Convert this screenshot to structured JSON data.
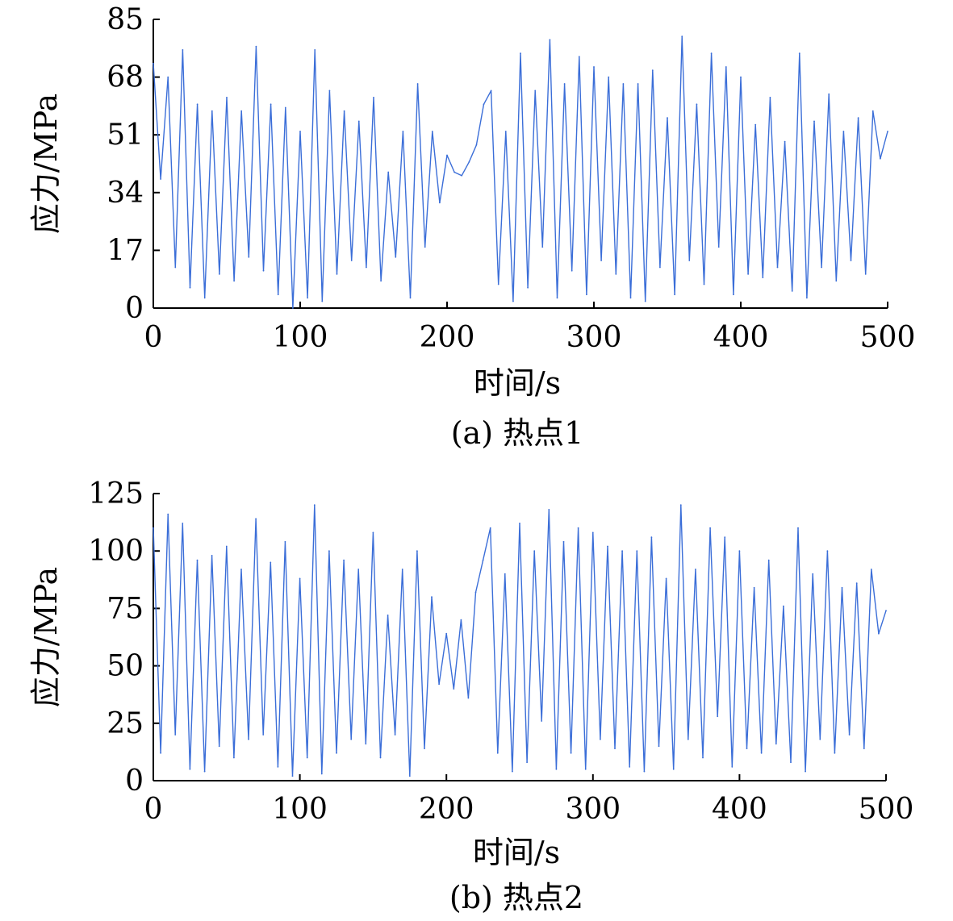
{
  "colors": {
    "line": "#3b6ed8",
    "axis": "#000000",
    "text": "#000000",
    "background": "#ffffff"
  },
  "chart_data": [
    {
      "type": "line",
      "panel_label": "(a) 热点1",
      "xlabel": "时间/s",
      "ylabel": "应力/MPa",
      "xlim": [
        0,
        500
      ],
      "ylim": [
        0,
        85
      ],
      "xticks": [
        "0",
        "100",
        "200",
        "300",
        "400",
        "500"
      ],
      "yticks": [
        "0",
        "17",
        "34",
        "51",
        "68",
        "85"
      ],
      "grid": false,
      "legend": false,
      "series": [
        {
          "x": [
            0,
            5,
            10,
            15,
            20,
            25,
            30,
            35,
            40,
            45,
            50,
            55,
            60,
            65,
            70,
            75,
            80,
            85,
            90,
            95,
            100,
            105,
            110,
            115,
            120,
            125,
            130,
            135,
            140,
            145,
            150,
            155,
            160,
            165,
            170,
            175,
            180,
            185,
            190,
            195,
            200,
            205,
            210,
            215,
            220,
            225,
            230,
            235,
            240,
            245,
            250,
            255,
            260,
            265,
            270,
            275,
            280,
            285,
            290,
            295,
            300,
            305,
            310,
            315,
            320,
            325,
            330,
            335,
            340,
            345,
            350,
            355,
            360,
            365,
            370,
            375,
            380,
            385,
            390,
            395,
            400,
            405,
            410,
            415,
            420,
            425,
            430,
            435,
            440,
            445,
            450,
            455,
            460,
            465,
            470,
            475,
            480,
            485,
            490,
            495,
            500
          ],
          "values": [
            72,
            38,
            68,
            12,
            76,
            6,
            60,
            3,
            58,
            10,
            62,
            8,
            58,
            15,
            77,
            11,
            60,
            4,
            59,
            0,
            52,
            3,
            76,
            2,
            64,
            10,
            58,
            14,
            55,
            12,
            62,
            8,
            40,
            15,
            52,
            3,
            66,
            18,
            52,
            31,
            45,
            40,
            39,
            43,
            48,
            60,
            64,
            7,
            52,
            2,
            75,
            6,
            64,
            18,
            79,
            3,
            66,
            11,
            74,
            4,
            71,
            14,
            68,
            10,
            66,
            3,
            66,
            2,
            70,
            12,
            56,
            4,
            80,
            14,
            60,
            7,
            75,
            18,
            71,
            4,
            68,
            10,
            54,
            9,
            62,
            12,
            49,
            5,
            75,
            3,
            55,
            12,
            63,
            8,
            52,
            14,
            56,
            10,
            58,
            44,
            52
          ]
        }
      ]
    },
    {
      "type": "line",
      "panel_label": "(b) 热点2",
      "xlabel": "时间/s",
      "ylabel": "应力/MPa",
      "xlim": [
        0,
        500
      ],
      "ylim": [
        0,
        125
      ],
      "xticks": [
        "0",
        "100",
        "200",
        "300",
        "400",
        "500"
      ],
      "yticks": [
        "0",
        "25",
        "50",
        "75",
        "100",
        "125"
      ],
      "grid": false,
      "legend": false,
      "series": [
        {
          "x": [
            0,
            5,
            10,
            15,
            20,
            25,
            30,
            35,
            40,
            45,
            50,
            55,
            60,
            65,
            70,
            75,
            80,
            85,
            90,
            95,
            100,
            105,
            110,
            115,
            120,
            125,
            130,
            135,
            140,
            145,
            150,
            155,
            160,
            165,
            170,
            175,
            180,
            185,
            190,
            195,
            200,
            205,
            210,
            215,
            220,
            225,
            230,
            235,
            240,
            245,
            250,
            255,
            260,
            265,
            270,
            275,
            280,
            285,
            290,
            295,
            300,
            305,
            310,
            315,
            320,
            325,
            330,
            335,
            340,
            345,
            350,
            355,
            360,
            365,
            370,
            375,
            380,
            385,
            390,
            395,
            400,
            405,
            410,
            415,
            420,
            425,
            430,
            435,
            440,
            445,
            450,
            455,
            460,
            465,
            470,
            475,
            480,
            485,
            490,
            495,
            500
          ],
          "values": [
            110,
            12,
            116,
            20,
            112,
            5,
            96,
            4,
            98,
            15,
            102,
            10,
            92,
            18,
            114,
            20,
            95,
            6,
            104,
            2,
            88,
            10,
            120,
            3,
            100,
            12,
            96,
            18,
            92,
            16,
            108,
            10,
            72,
            20,
            92,
            2,
            100,
            14,
            80,
            42,
            64,
            40,
            70,
            36,
            82,
            96,
            110,
            12,
            90,
            4,
            112,
            8,
            100,
            26,
            118,
            5,
            104,
            12,
            110,
            5,
            108,
            18,
            102,
            14,
            100,
            6,
            100,
            4,
            106,
            15,
            88,
            5,
            120,
            18,
            92,
            10,
            110,
            28,
            106,
            6,
            100,
            14,
            84,
            12,
            96,
            16,
            76,
            8,
            110,
            4,
            90,
            18,
            100,
            12,
            84,
            20,
            86,
            14,
            92,
            64,
            74
          ]
        }
      ]
    }
  ]
}
